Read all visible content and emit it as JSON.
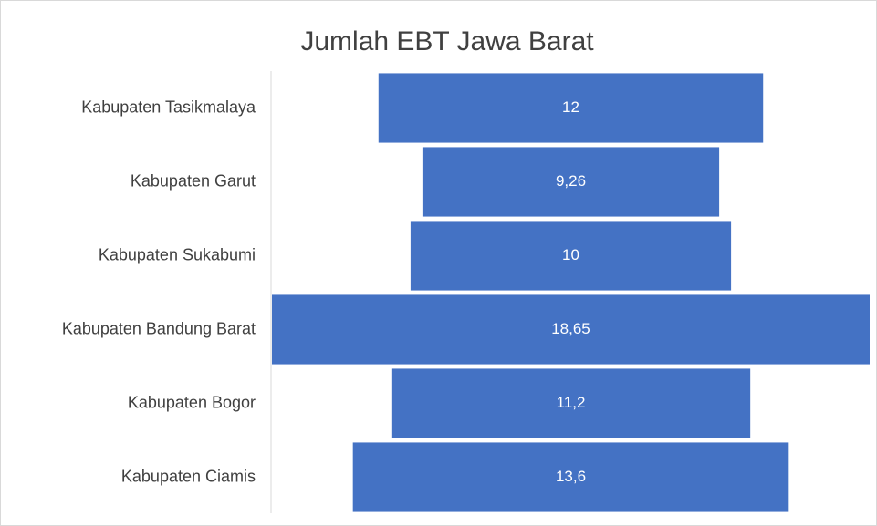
{
  "chart_data": {
    "type": "funnel",
    "title": "Jumlah EBT Jawa Barat",
    "categories": [
      "Kabupaten Tasikmalaya",
      "Kabupaten Garut",
      "Kabupaten Sukabumi",
      "Kabupaten Bandung Barat",
      "Kabupaten Bogor",
      "Kabupaten Ciamis"
    ],
    "values": [
      12,
      9.26,
      10,
      18.65,
      11.2,
      13.6
    ],
    "value_labels": [
      "12",
      "9,26",
      "10",
      "18,65",
      "11,2",
      "13,6"
    ],
    "color": "#4472c4"
  }
}
